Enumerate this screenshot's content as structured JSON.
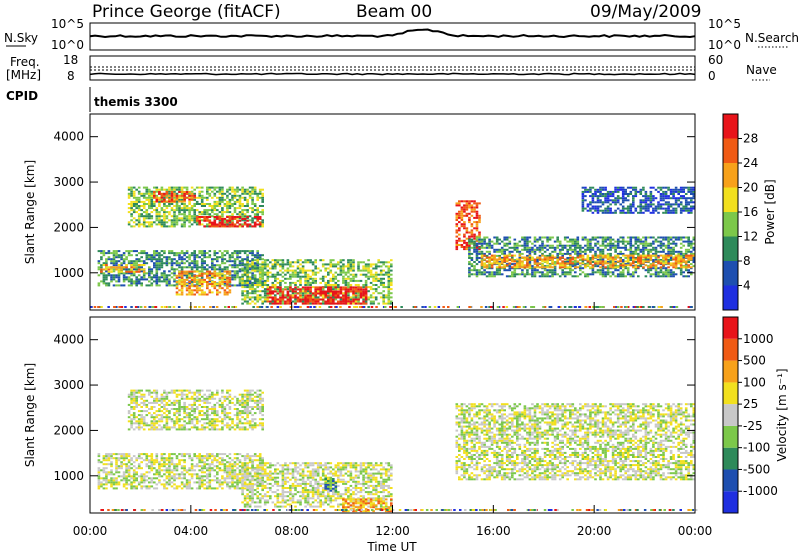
{
  "header": {
    "station": "Prince George (fitACF)",
    "beam": "Beam 00",
    "date": "09/May/2009"
  },
  "top_panels": {
    "nsky_label": "N.Sky",
    "nsky_ticks": [
      "10^5",
      "10^0"
    ],
    "nsearch_label": "N.Search",
    "nsearch_ticks": [
      "10^5",
      "10^0"
    ],
    "freq_label": "Freq.",
    "freq_unit": "[MHz]",
    "freq_ticks": [
      "18",
      "8"
    ],
    "nave_label": "Nave",
    "nave_ticks": [
      "60",
      "0"
    ],
    "cpid_label": "CPID",
    "cpid_value": "themis 3300"
  },
  "x_axis": {
    "label": "Time UT",
    "ticks": [
      "00:00",
      "04:00",
      "08:00",
      "12:00",
      "16:00",
      "20:00",
      "00:00"
    ]
  },
  "chart_data": [
    {
      "type": "heatmap",
      "panel": "power",
      "ylabel": "Slant Range [km]",
      "yticks": [
        1000,
        2000,
        3000,
        4000
      ],
      "ylim": [
        180,
        4500
      ],
      "xlim_hours": [
        0,
        24
      ],
      "colorbar_label": "Power [dB]",
      "colorbar_ticks": [
        "28",
        "24",
        "20",
        "16",
        "12",
        "8",
        "4"
      ],
      "colors": [
        "#1f2fe0",
        "#1e4fb0",
        "#2e8a5a",
        "#7cc84a",
        "#f2e01e",
        "#f7a11a",
        "#f05a14",
        "#e8141a"
      ],
      "regions": [
        {
          "t0": 0.3,
          "t1": 6.9,
          "r0": 700,
          "r1": 1500,
          "level": 2
        },
        {
          "t0": 1.5,
          "t1": 6.9,
          "r0": 2000,
          "r1": 2900,
          "level": 3
        },
        {
          "t0": 2.5,
          "t1": 4.2,
          "r0": 2550,
          "r1": 2800,
          "level": 6
        },
        {
          "t0": 4.2,
          "t1": 6.8,
          "r0": 2000,
          "r1": 2250,
          "level": 7
        },
        {
          "t0": 0.4,
          "t1": 2.2,
          "r0": 1000,
          "r1": 1200,
          "level": 5
        },
        {
          "t0": 3.4,
          "t1": 5.6,
          "r0": 500,
          "r1": 1050,
          "level": 5
        },
        {
          "t0": 6.0,
          "t1": 12.0,
          "r0": 300,
          "r1": 1300,
          "level": 3
        },
        {
          "t0": 7.0,
          "t1": 11.0,
          "r0": 300,
          "r1": 700,
          "level": 7
        },
        {
          "t0": 14.5,
          "t1": 15.5,
          "r0": 1500,
          "r1": 2600,
          "level": 6
        },
        {
          "t0": 15.0,
          "t1": 24.0,
          "r0": 900,
          "r1": 1800,
          "level": 2
        },
        {
          "t0": 15.5,
          "t1": 24.0,
          "r0": 1100,
          "r1": 1400,
          "level": 5
        },
        {
          "t0": 19.5,
          "t1": 24.0,
          "r0": 2300,
          "r1": 2900,
          "level": 1
        }
      ]
    },
    {
      "type": "heatmap",
      "panel": "velocity",
      "ylabel": "Slant Range [km]",
      "yticks": [
        1000,
        2000,
        3000,
        4000
      ],
      "ylim": [
        180,
        4500
      ],
      "xlim_hours": [
        0,
        24
      ],
      "colorbar_label": "Velocity [m s⁻¹]",
      "colorbar_ticks": [
        "1000",
        "500",
        "100",
        "25",
        "-25",
        "-100",
        "-500",
        "-1000"
      ],
      "colors": [
        "#1f2fe0",
        "#1e4fb0",
        "#2e8a5a",
        "#7cc84a",
        "#c8c8c8",
        "#f2e01e",
        "#f7a11a",
        "#f05a14",
        "#e8141a"
      ],
      "regions": [
        {
          "t0": 0.3,
          "t1": 6.9,
          "r0": 700,
          "r1": 1500,
          "level": 4
        },
        {
          "t0": 1.5,
          "t1": 6.9,
          "r0": 2000,
          "r1": 2900,
          "level": 4
        },
        {
          "t0": 6.0,
          "t1": 12.0,
          "r0": 300,
          "r1": 1300,
          "level": 4
        },
        {
          "t0": 9.3,
          "t1": 9.8,
          "r0": 650,
          "r1": 950,
          "level": 2
        },
        {
          "t0": 14.5,
          "t1": 24.0,
          "r0": 900,
          "r1": 2600,
          "level": 4
        },
        {
          "t0": 10.0,
          "t1": 12.0,
          "r0": 200,
          "r1": 500,
          "level": 6
        }
      ]
    }
  ]
}
